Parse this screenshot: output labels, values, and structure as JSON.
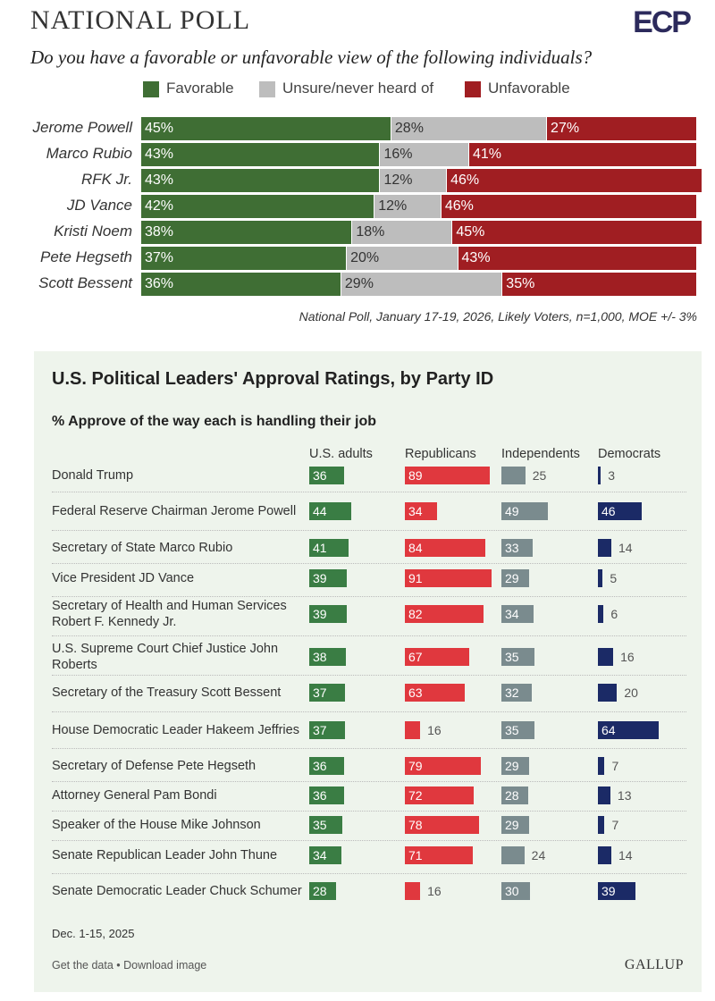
{
  "chart_data": [
    {
      "type": "stacked-bar",
      "title": "NATIONAL POLL",
      "brand": "ECP",
      "subtitle": "Do you have a favorable or unfavorable view of the following individuals?",
      "categories": [
        "Jerome Powell",
        "Marco Rubio",
        "RFK Jr.",
        "JD Vance",
        "Kristi Noem",
        "Pete Hegseth",
        "Scott Bessent"
      ],
      "series": [
        {
          "name": "Favorable",
          "color": "#3f6e34",
          "values": [
            45,
            43,
            43,
            42,
            38,
            37,
            36
          ],
          "value_labels": [
            "45%",
            "43%",
            "43%",
            "42%",
            "38%",
            "37%",
            "36%"
          ]
        },
        {
          "name": "Unsure/never heard of",
          "color": "#bdbdbd",
          "values": [
            28,
            16,
            12,
            12,
            18,
            20,
            29
          ],
          "value_labels": [
            "28%",
            "16%",
            "12%",
            "12%",
            "18%",
            "20%",
            "29%"
          ]
        },
        {
          "name": "Unfavorable",
          "color": "#a01e22",
          "values": [
            27,
            41,
            46,
            46,
            45,
            43,
            35
          ],
          "value_labels": [
            "27%",
            "41%",
            "46%",
            "46%",
            "45%",
            "43%",
            "35%"
          ]
        }
      ],
      "note": "National Poll, January 17-19, 2026, Likely Voters, n=1,000, MOE +/- 3%"
    },
    {
      "type": "bar-table",
      "title": "U.S. Political Leaders' Approval Ratings, by Party ID",
      "subtitle": "% Approve of the way each is handling their job",
      "categories": [
        "Donald Trump",
        "Federal Reserve Chairman Jerome Powell",
        "Secretary of State Marco Rubio",
        "Vice President JD Vance",
        "Secretary of Health and Human Services Robert F. Kennedy Jr.",
        "U.S. Supreme Court Chief Justice John Roberts",
        "Secretary of the Treasury Scott Bessent",
        "House Democratic Leader Hakeem Jeffries",
        "Secretary of Defense Pete Hegseth",
        "Attorney General Pam Bondi",
        "Speaker of the House Mike Johnson",
        "Senate Republican Leader John Thune",
        "Senate Democratic Leader Chuck Schumer"
      ],
      "series": [
        {
          "name": "U.S. adults",
          "color": "#3a7d44",
          "values": [
            36,
            44,
            41,
            39,
            39,
            38,
            37,
            37,
            36,
            36,
            35,
            34,
            28
          ]
        },
        {
          "name": "Republicans",
          "color": "#e0383e",
          "values": [
            89,
            34,
            84,
            91,
            82,
            67,
            63,
            16,
            79,
            72,
            78,
            71,
            16
          ]
        },
        {
          "name": "Independents",
          "color": "#7a8b8e",
          "values": [
            25,
            49,
            33,
            29,
            34,
            35,
            32,
            35,
            29,
            28,
            29,
            24,
            30
          ]
        },
        {
          "name": "Democrats",
          "color": "#1b2a66",
          "values": [
            3,
            46,
            14,
            5,
            6,
            16,
            20,
            64,
            7,
            13,
            7,
            14,
            39
          ]
        }
      ],
      "note": "Dec. 1-15, 2025",
      "footer": "Get the data • Download image",
      "brand": "GALLUP"
    }
  ]
}
